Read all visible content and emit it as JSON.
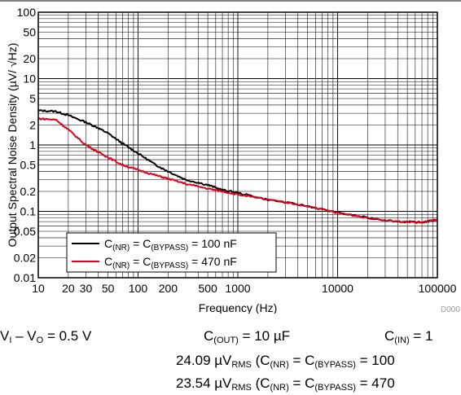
{
  "chart_data": {
    "type": "line",
    "title": "",
    "xlabel": "Frequency (Hz)",
    "ylabel": "Output Spectral Noise Density (µV/ √Hz)",
    "xscale": "log",
    "yscale": "log",
    "xlim": [
      10,
      100000
    ],
    "ylim": [
      0.01,
      100
    ],
    "grid": true,
    "legend_placement": "bottom-left",
    "x_tick_labels": [
      {
        "value": 10,
        "label": "10"
      },
      {
        "value": 20,
        "label": "20"
      },
      {
        "value": 30,
        "label": "30"
      },
      {
        "value": 50,
        "label": "50"
      },
      {
        "value": 100,
        "label": "100"
      },
      {
        "value": 200,
        "label": "200"
      },
      {
        "value": 500,
        "label": "500"
      },
      {
        "value": 1000,
        "label": "1000"
      },
      {
        "value": 10000,
        "label": "10000"
      },
      {
        "value": 100000,
        "label": "100000"
      }
    ],
    "y_tick_labels": [
      {
        "value": 100,
        "label": "100"
      },
      {
        "value": 50,
        "label": "50"
      },
      {
        "value": 20,
        "label": "20"
      },
      {
        "value": 10,
        "label": "10"
      },
      {
        "value": 5,
        "label": "5"
      },
      {
        "value": 2,
        "label": "2"
      },
      {
        "value": 1,
        "label": "1"
      },
      {
        "value": 0.5,
        "label": "0.5"
      },
      {
        "value": 0.2,
        "label": "0.2"
      },
      {
        "value": 0.1,
        "label": "0.1"
      },
      {
        "value": 0.05,
        "label": "0.05"
      },
      {
        "value": 0.02,
        "label": "0.02"
      },
      {
        "value": 0.01,
        "label": "0.01"
      }
    ],
    "series": [
      {
        "name": "C(NR) = C(BYPASS) = 100 nF",
        "color": "#000000",
        "x": [
          10,
          15,
          20,
          30,
          40,
          50,
          70,
          100,
          150,
          200,
          300,
          500,
          700,
          1000,
          2000,
          5000,
          10000,
          20000,
          40000,
          70000,
          100000
        ],
        "y": [
          3.3,
          3.2,
          2.8,
          2.2,
          1.8,
          1.5,
          1.05,
          0.75,
          0.5,
          0.4,
          0.3,
          0.25,
          0.21,
          0.19,
          0.15,
          0.12,
          0.095,
          0.08,
          0.07,
          0.068,
          0.075
        ]
      },
      {
        "name": "C(NR) = C(BYPASS) = 470 nF",
        "color": "#e0001a",
        "x": [
          10,
          15,
          20,
          30,
          40,
          50,
          70,
          100,
          150,
          200,
          300,
          500,
          700,
          1000,
          2000,
          5000,
          10000,
          20000,
          40000,
          70000,
          100000
        ],
        "y": [
          2.5,
          2.4,
          1.7,
          1.0,
          0.78,
          0.65,
          0.5,
          0.42,
          0.35,
          0.31,
          0.26,
          0.22,
          0.2,
          0.18,
          0.15,
          0.12,
          0.095,
          0.08,
          0.07,
          0.068,
          0.075
        ]
      }
    ],
    "legend": [
      {
        "parts": [
          "C",
          "(NR)",
          " = C",
          "(BYPASS)",
          " = 100 nF"
        ]
      },
      {
        "parts": [
          "C",
          "(NR)",
          " = C",
          "(BYPASS)",
          " = 470 nF"
        ]
      }
    ],
    "figure_id": "D000"
  },
  "conditions": {
    "vin_vout": {
      "a": "V",
      "a_sub": "I",
      "b": " – V",
      "b_sub": "O",
      "c": " = 0.5 V"
    },
    "cout": {
      "a": "C",
      "a_sub": "(OUT)",
      "b": " = 10 µF"
    },
    "cin": {
      "a": "C",
      "a_sub": "(IN)",
      "b": " = 1"
    },
    "rms1": {
      "a": "24.09 µV",
      "a_sub": "RMS",
      "b": " (C",
      "b_sub": "(NR)",
      "c": " = C",
      "c_sub": "(BYPASS)",
      "d": " = 100"
    },
    "rms2": {
      "a": "23.54 µV",
      "a_sub": "RMS",
      "b": " (C",
      "b_sub": "(NR)",
      "c": " = C",
      "c_sub": "(BYPASS)",
      "d": " = 470"
    }
  }
}
